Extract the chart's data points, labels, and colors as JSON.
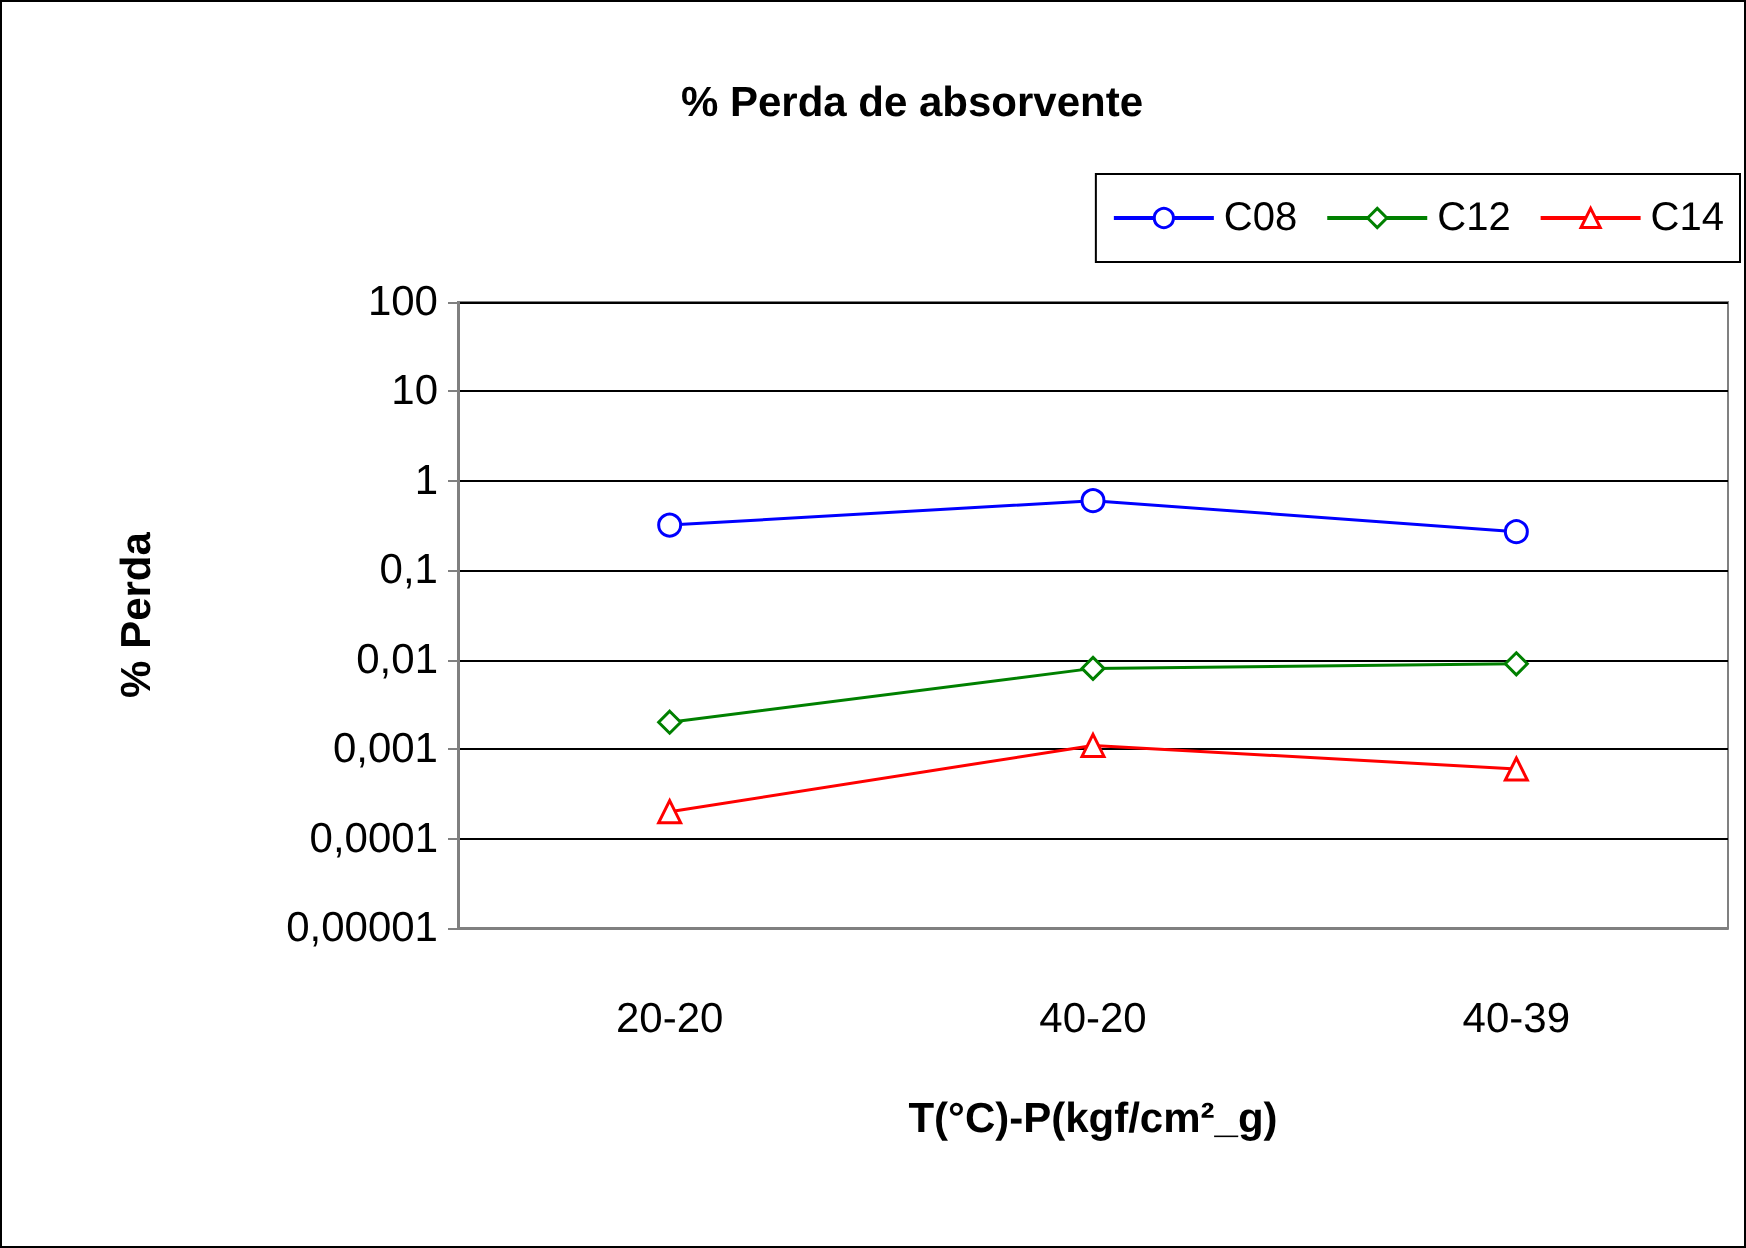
{
  "chart_data": {
    "type": "line",
    "title": "% Perda de absorvente",
    "xlabel": "T(°C)-P(kgf/cm²_g)",
    "ylabel": "% Perda",
    "categories": [
      "20-20",
      "40-20",
      "40-39"
    ],
    "series": [
      {
        "name": "C08",
        "color": "#0000ff",
        "marker": "circle",
        "values": [
          0.32,
          0.6,
          0.27
        ]
      },
      {
        "name": "C12",
        "color": "#008000",
        "marker": "diamond",
        "values": [
          0.002,
          0.008,
          0.009
        ]
      },
      {
        "name": "C14",
        "color": "#ff0000",
        "marker": "triangle",
        "values": [
          0.0002,
          0.0011,
          0.0006
        ]
      }
    ],
    "log": "y",
    "ylim": [
      1e-05,
      100
    ],
    "yticks": [
      {
        "value": 1e-05,
        "label": "0,00001"
      },
      {
        "value": 0.0001,
        "label": "0,0001"
      },
      {
        "value": 0.001,
        "label": "0,001"
      },
      {
        "value": 0.01,
        "label": "0,01"
      },
      {
        "value": 0.1,
        "label": "0,1"
      },
      1,
      10,
      100
    ],
    "grid": "y",
    "legend": "top right",
    "line_style": "solid"
  }
}
